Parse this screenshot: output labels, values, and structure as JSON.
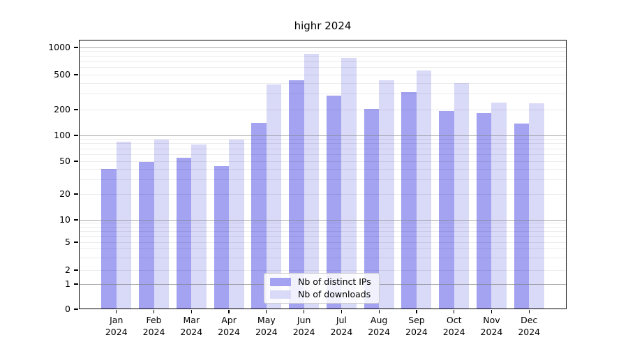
{
  "chart_data": {
    "type": "bar",
    "title": "highr 2024",
    "scale": "symlog",
    "grid": true,
    "legend_position": "bottom-center",
    "months": [
      "Jan",
      "Feb",
      "Mar",
      "Apr",
      "May",
      "Jun",
      "Jul",
      "Aug",
      "Sep",
      "Oct",
      "Nov",
      "Dec"
    ],
    "year": "2024",
    "categories": [
      "Jan 2024",
      "Feb 2024",
      "Mar 2024",
      "Apr 2024",
      "May 2024",
      "Jun 2024",
      "Jul 2024",
      "Aug 2024",
      "Sep 2024",
      "Oct 2024",
      "Nov 2024",
      "Dec 2024"
    ],
    "series": [
      {
        "name": "Nb of distinct IPs",
        "color": "#a3a3f1",
        "values": [
          40,
          49,
          55,
          44,
          140,
          430,
          290,
          205,
          315,
          193,
          182,
          137
        ]
      },
      {
        "name": "Nb of downloads",
        "color": "#d9d9f8",
        "values": [
          84,
          90,
          78,
          90,
          385,
          845,
          765,
          430,
          555,
          400,
          242,
          238
        ]
      }
    ],
    "ytick_values": [
      0,
      1,
      2,
      5,
      10,
      20,
      50,
      100,
      200,
      500,
      1000
    ],
    "ytick_labels": [
      "0",
      "1",
      "2",
      "5",
      "10",
      "20",
      "50",
      "100",
      "200",
      "500",
      "1000"
    ],
    "ylim": [
      0,
      1200
    ],
    "xlabel": "",
    "ylabel": "",
    "colors": {
      "grid_major": "#808080",
      "grid_minor": "#e8e8e8",
      "axis": "#000000",
      "legend_border": "#cccccc"
    }
  }
}
